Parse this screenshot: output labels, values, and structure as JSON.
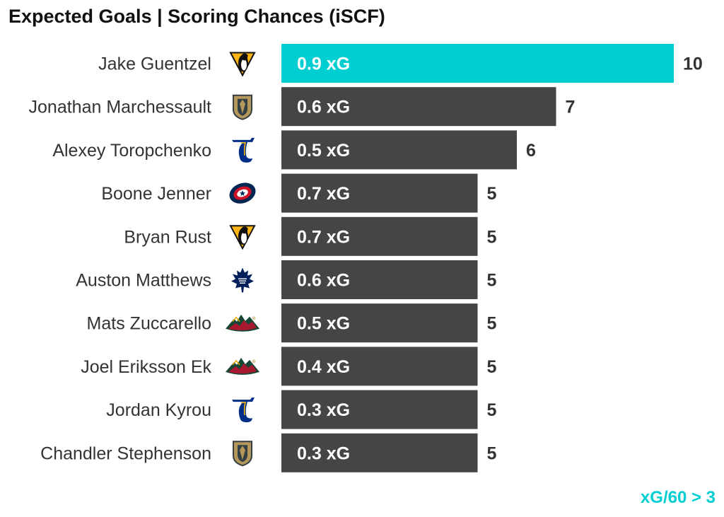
{
  "chart_data": {
    "type": "bar",
    "orientation": "horizontal",
    "title": "Expected Goals | Scoring Chances (iSCF)",
    "footnote": "xG/60 > 3",
    "categories": [
      "Jake Guentzel",
      "Jonathan Marchessault",
      "Alexey Toropchenko",
      "Boone Jenner",
      "Bryan Rust",
      "Auston Matthews",
      "Mats Zuccarello",
      "Joel Eriksson Ek",
      "Jordan Kyrou",
      "Chandler Stephenson"
    ],
    "values": [
      10,
      7,
      6,
      5,
      5,
      5,
      5,
      5,
      5,
      5
    ],
    "bar_labels": [
      "0.9 xG",
      "0.6 xG",
      "0.5 xG",
      "0.7 xG",
      "0.7 xG",
      "0.6 xG",
      "0.5 xG",
      "0.4 xG",
      "0.3 xG",
      "0.3 xG"
    ],
    "teams": [
      "PIT",
      "VGK",
      "STL",
      "CBJ",
      "PIT",
      "TOR",
      "MIN",
      "MIN",
      "STL",
      "VGK"
    ],
    "team_logo_icons": [
      "penguins-logo-icon",
      "golden-knights-logo-icon",
      "blues-logo-icon",
      "blue-jackets-logo-icon",
      "penguins-logo-icon",
      "maple-leafs-logo-icon",
      "wild-logo-icon",
      "wild-logo-icon",
      "blues-logo-icon",
      "golden-knights-logo-icon"
    ],
    "xlim": [
      0,
      10
    ],
    "grid": false,
    "legend": "none",
    "colors": {
      "highlight": "#00CED1",
      "default": "#454545",
      "footnote": "#00CED1"
    }
  }
}
